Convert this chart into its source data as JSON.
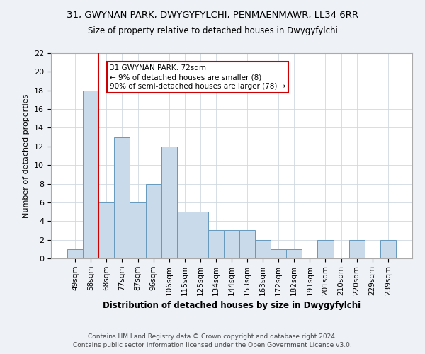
{
  "title_line1": "31, GWYNAN PARK, DWYGYFYLCHI, PENMAENMAWR, LL34 6RR",
  "title_line2": "Size of property relative to detached houses in Dwygyfylchi",
  "xlabel": "Distribution of detached houses by size in Dwygyfylchi",
  "ylabel": "Number of detached properties",
  "categories": [
    "49sqm",
    "58sqm",
    "68sqm",
    "77sqm",
    "87sqm",
    "96sqm",
    "106sqm",
    "115sqm",
    "125sqm",
    "134sqm",
    "144sqm",
    "153sqm",
    "163sqm",
    "172sqm",
    "182sqm",
    "191sqm",
    "201sqm",
    "210sqm",
    "220sqm",
    "229sqm",
    "239sqm"
  ],
  "values": [
    1,
    18,
    6,
    13,
    6,
    8,
    12,
    5,
    5,
    3,
    3,
    3,
    2,
    1,
    1,
    0,
    2,
    0,
    2,
    0,
    2
  ],
  "bar_color": "#c9daea",
  "bar_edge_color": "#6699bb",
  "vline_x": 2,
  "vline_color": "#cc0000",
  "annotation_text": "31 GWYNAN PARK: 72sqm\n← 9% of detached houses are smaller (8)\n90% of semi-detached houses are larger (78) →",
  "annotation_box_color": "#ffffff",
  "annotation_box_edge": "#cc0000",
  "ylim": [
    0,
    22
  ],
  "yticks": [
    0,
    2,
    4,
    6,
    8,
    10,
    12,
    14,
    16,
    18,
    20,
    22
  ],
  "footer_line1": "Contains HM Land Registry data © Crown copyright and database right 2024.",
  "footer_line2": "Contains public sector information licensed under the Open Government Licence v3.0.",
  "background_color": "#eef2f7",
  "plot_bg_color": "#ffffff",
  "grid_color": "#d0d8e0"
}
